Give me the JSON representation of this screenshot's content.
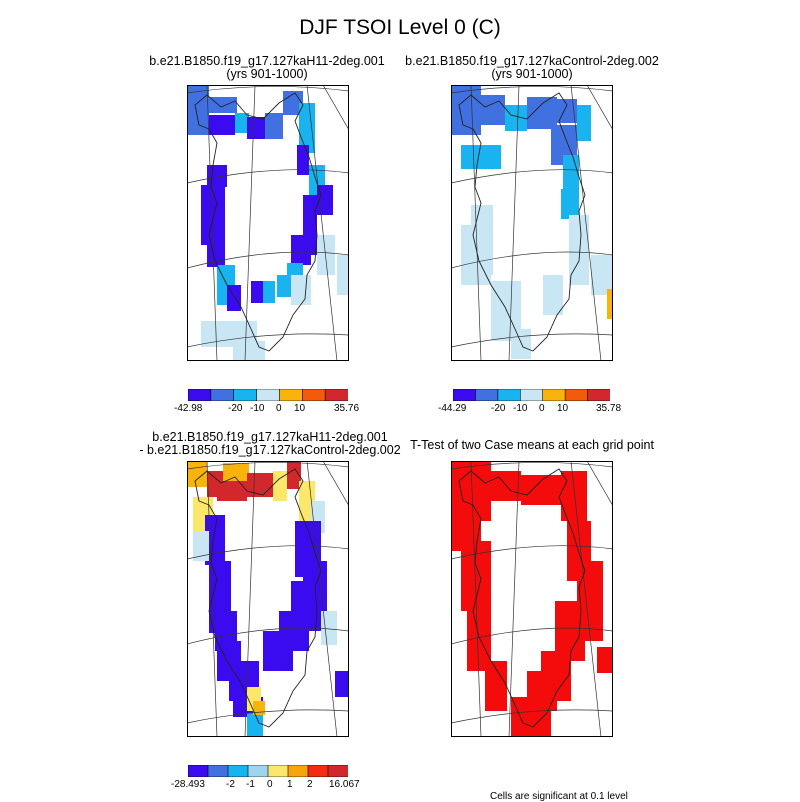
{
  "page_title": "DJF TSOI Level 0 (C)",
  "panels": [
    {
      "title_line1": "b.e21.B1850.f19_g17.127kaH11-2deg.001",
      "title_line2": "(yrs 901-1000)",
      "colorbar": {
        "colors": [
          "#3b0bf0",
          "#4170e0",
          "#19b4f0",
          "#c9e6f5",
          "#f8b40c",
          "#f45a0c",
          "#d2282d"
        ],
        "labels": [
          "-42.98",
          "-20",
          "-10",
          "0",
          "10",
          "35.76"
        ]
      }
    },
    {
      "title_line1": "b.e21.B1850.f19_g17.127kaControl-2deg.002",
      "title_line2": "(yrs 901-1000)",
      "colorbar": {
        "colors": [
          "#3b0bf0",
          "#4170e0",
          "#19b4f0",
          "#c9e6f5",
          "#f8b40c",
          "#f45a0c",
          "#d2282d"
        ],
        "labels": [
          "-44.29",
          "-20",
          "-10",
          "0",
          "10",
          "35.78"
        ]
      }
    },
    {
      "title_line1": "b.e21.B1850.f19_g17.127kaH11-2deg.001",
      "title_line2": "- b.e21.B1850.f19_g17.127kaControl-2deg.002",
      "colorbar": {
        "colors": [
          "#3b0bf0",
          "#4170e0",
          "#19b4f0",
          "#9ed4ee",
          "#fbe86a",
          "#f8a50c",
          "#f42a14",
          "#d2282d"
        ],
        "labels": [
          "-28.493",
          "-2",
          "-1",
          "0",
          "1",
          "2",
          "16.067"
        ]
      }
    },
    {
      "title_line1": "T-Test of two Case means at each grid point",
      "significance_note": "Cells are significant at 0.1 level"
    }
  ],
  "map_colors": {
    "dark_blue": "#3b0bf0",
    "mid_blue": "#4170e0",
    "cyan": "#19b4f0",
    "light_blue": "#c9e6f5",
    "orange": "#f8b40c",
    "red": "#d2282d",
    "yellow": "#fbe86a",
    "sig_red": "#f40c0c",
    "coast": "#222222"
  }
}
